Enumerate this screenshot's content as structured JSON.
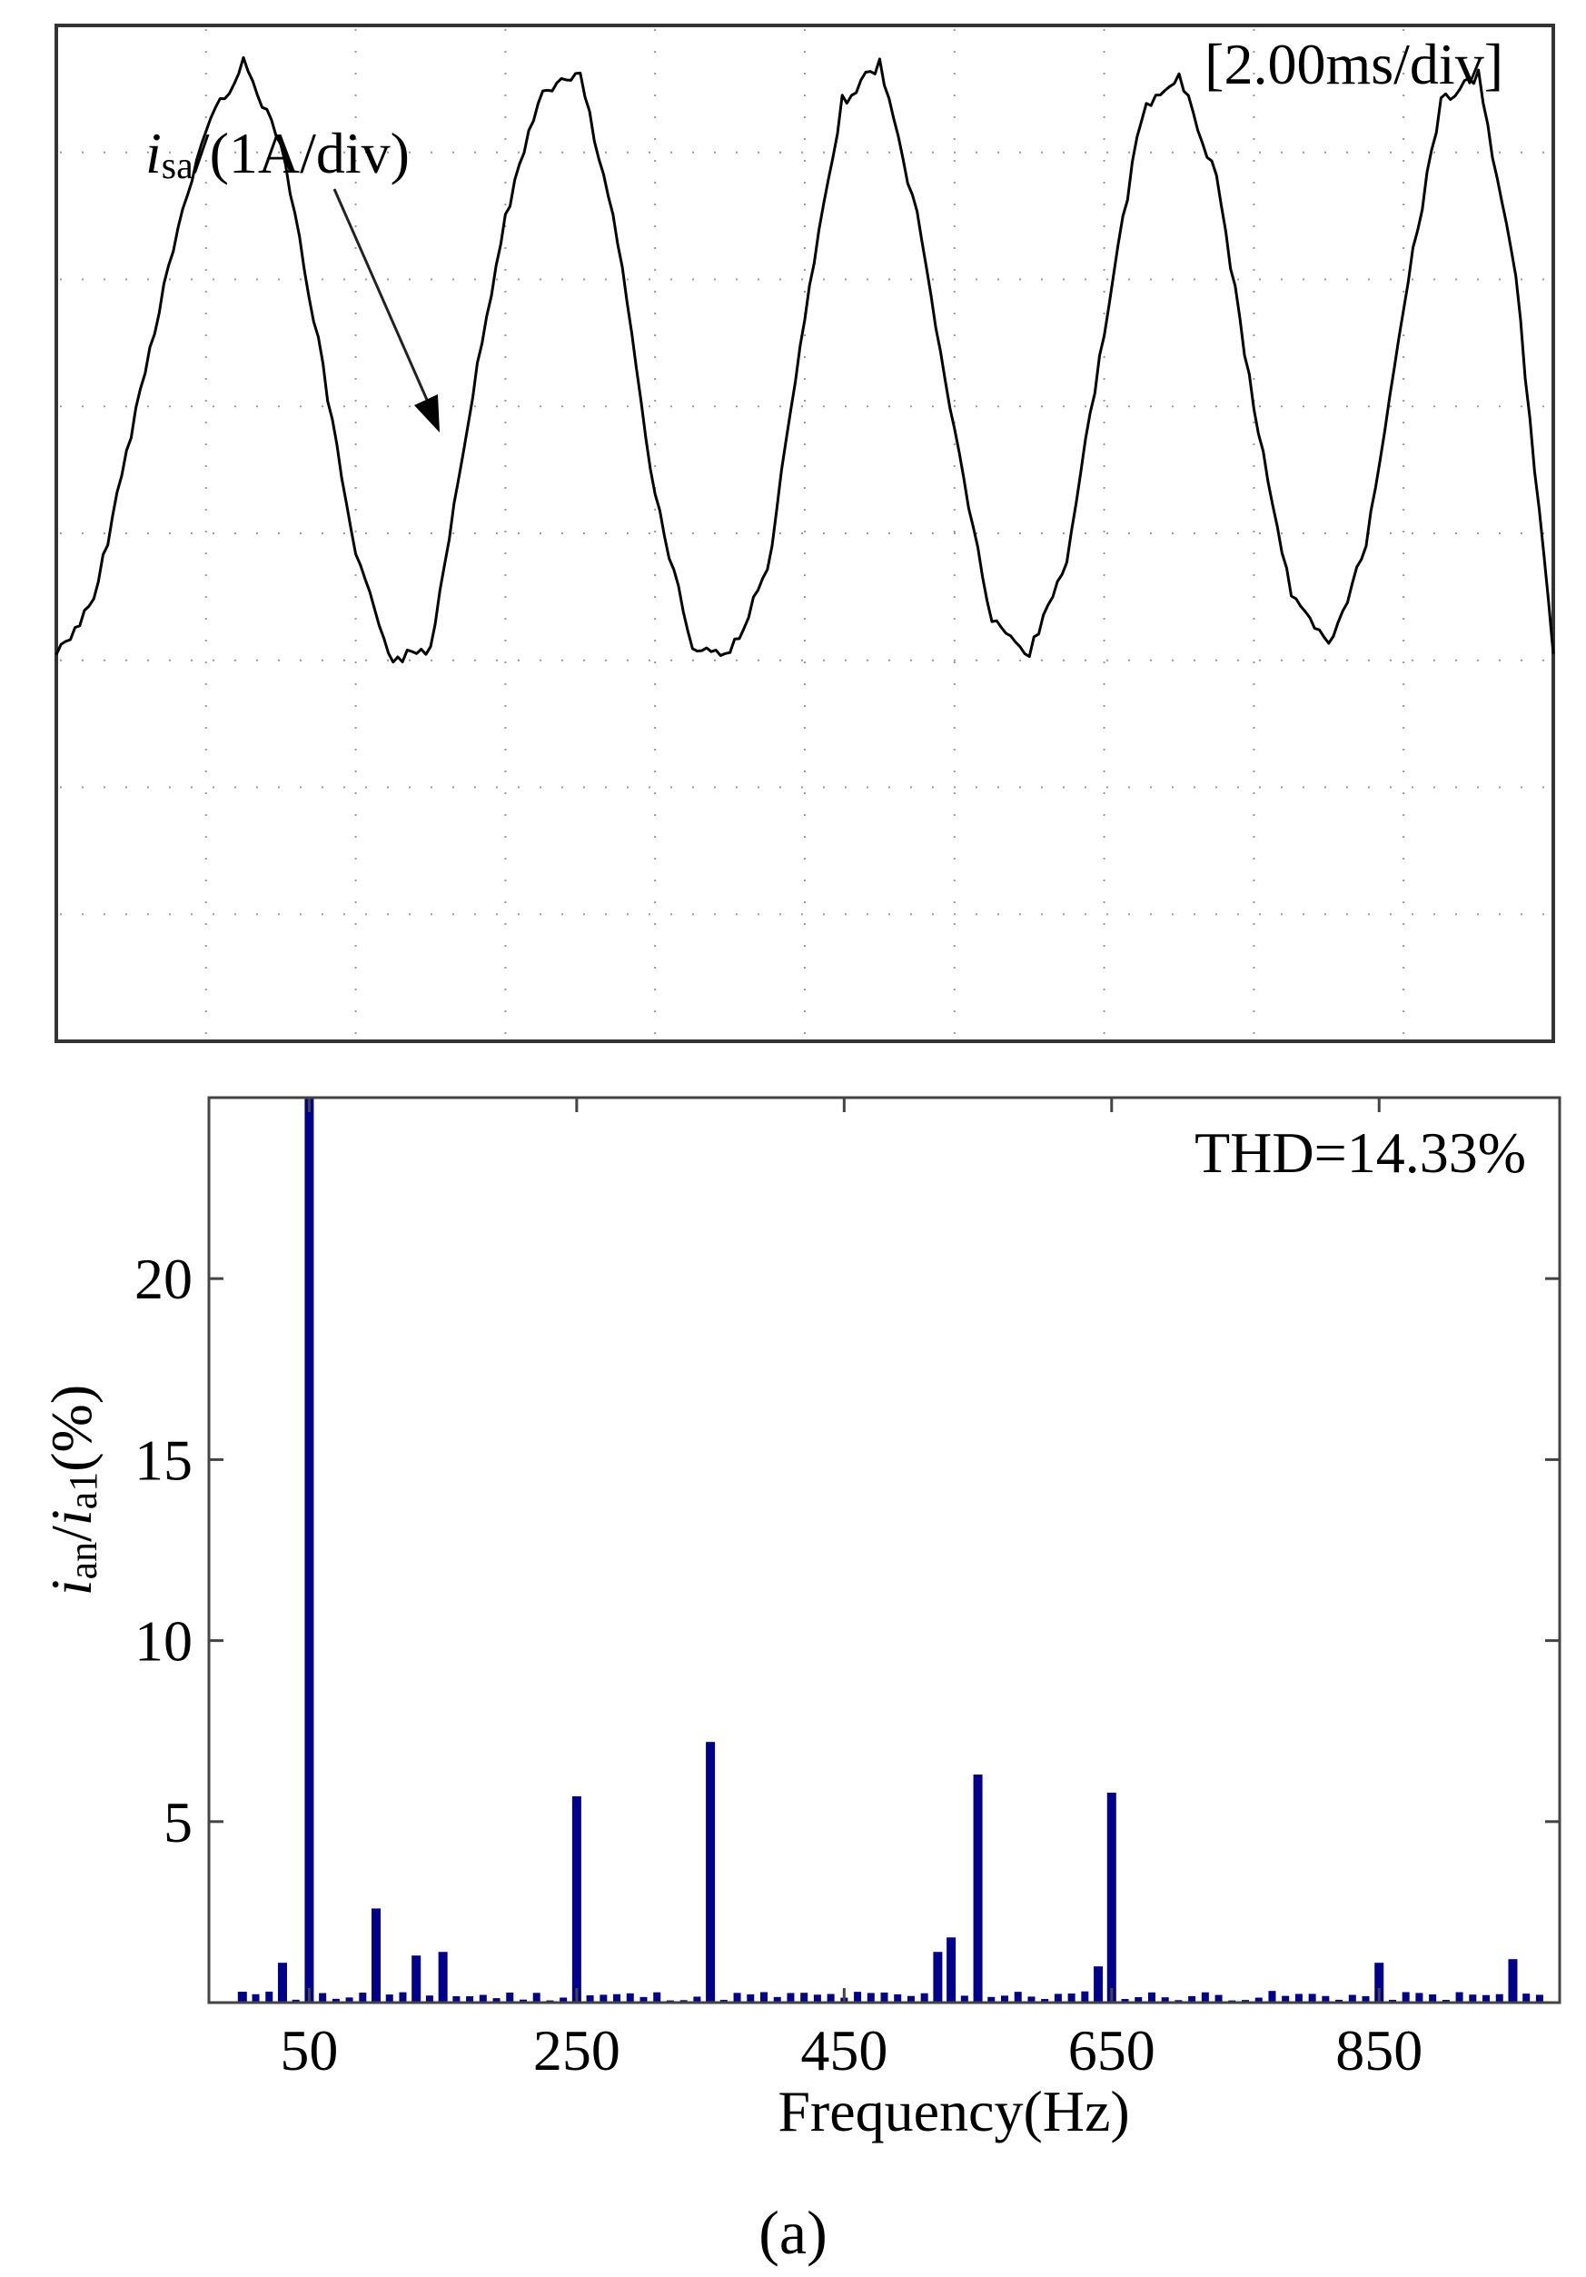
{
  "chart_data": [
    {
      "type": "line",
      "title": "",
      "time_scale": "[2.00ms/div]",
      "trace_label": {
        "main": "i",
        "sub": "sa",
        "tail": "/(1A/div)"
      },
      "grid": true,
      "divisions": {
        "x": 10,
        "y": 8
      },
      "x": [
        0,
        0.5,
        1,
        1.5,
        2,
        2.5,
        3,
        3.5,
        4,
        4.5,
        5,
        5.5,
        6,
        6.5,
        7,
        7.5,
        8,
        8.5,
        9,
        9.5,
        10,
        10.5,
        11,
        11.5,
        12,
        12.5,
        13,
        13.5,
        14,
        14.5,
        15,
        15.5,
        16,
        16.5,
        17,
        17.5,
        18,
        18.5,
        19,
        19.5,
        20
      ],
      "x_unit": "div",
      "y": [
        -0.95,
        -0.55,
        0.8,
        2.1,
        3.2,
        3.7,
        3.1,
        1.5,
        -0.2,
        -1.0,
        -0.9,
        0.9,
        2.5,
        3.5,
        3.6,
        2.3,
        0.3,
        -0.9,
        -0.95,
        -0.3,
        1.7,
        3.4,
        3.7,
        2.5,
        0.8,
        -0.7,
        -0.95,
        -0.2,
        1.6,
        3.3,
        3.6,
        2.8,
        1.0,
        -0.5,
        -0.9,
        -0.1,
        1.8,
        3.4,
        3.6,
        2.0,
        -0.95
      ],
      "y_unit": "div"
    },
    {
      "type": "bar",
      "title": "",
      "annotation": "THD=14.33%",
      "xlabel": "Frequency(Hz)",
      "ylabel": {
        "main1": "i",
        "sub1": "an",
        "slash": "/",
        "main2": "i",
        "sub2": "a1",
        "tail": "(%)"
      },
      "xlim": [
        -25,
        985
      ],
      "ylim": [
        0,
        25
      ],
      "xticks": [
        50,
        250,
        450,
        650,
        850
      ],
      "yticks": [
        5,
        10,
        15,
        20
      ],
      "grid": false,
      "bar_color": "#00008B",
      "x": [
        0,
        30,
        50,
        100,
        130,
        150,
        250,
        350,
        520,
        530,
        550,
        640,
        650,
        850,
        950
      ],
      "values": [
        0.3,
        1.1,
        25,
        2.6,
        1.3,
        1.4,
        5.7,
        7.2,
        1.4,
        1.8,
        6.3,
        1.0,
        5.8,
        1.1,
        1.2
      ]
    }
  ],
  "caption": "(a)"
}
